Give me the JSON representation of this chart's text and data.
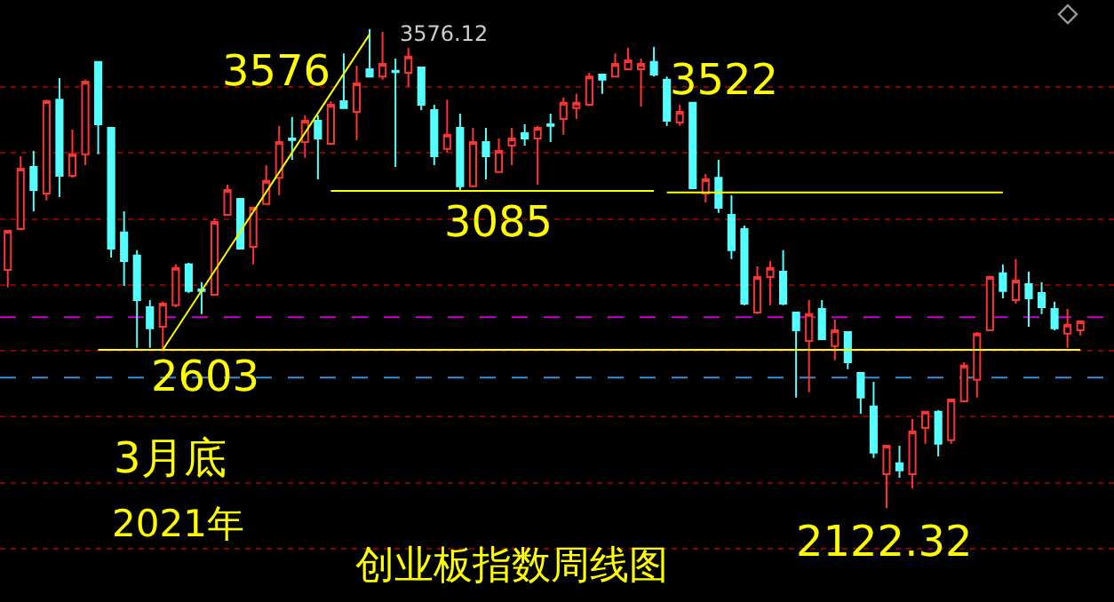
{
  "chart_data": {
    "type": "candlestick",
    "title": "创业板指数周线图",
    "categories": [
      null,
      null,
      null,
      null,
      null,
      null,
      null,
      null,
      null,
      null,
      null,
      null,
      null,
      null,
      null,
      null,
      null,
      null,
      null,
      null,
      null,
      null,
      null,
      null,
      null,
      null,
      null,
      null,
      null,
      null,
      null,
      null,
      null,
      null,
      null,
      null,
      null,
      null,
      null,
      null,
      null,
      null,
      null,
      null,
      null,
      null,
      null,
      null,
      null,
      null,
      null,
      null,
      null,
      null,
      null,
      null,
      null,
      null,
      null,
      null,
      null,
      null,
      null,
      null,
      null,
      null,
      null,
      null,
      null,
      null,
      null,
      null,
      null,
      null,
      null,
      null,
      null,
      null,
      null,
      null,
      null,
      null,
      null,
      null
    ],
    "ohlc": [
      [
        2845,
        2964,
        2792,
        2964
      ],
      [
        2969,
        3190,
        2969,
        3152
      ],
      [
        3158,
        3206,
        3023,
        3088
      ],
      [
        3077,
        3362,
        3056,
        3357
      ],
      [
        3362,
        3427,
        3066,
        3131
      ],
      [
        3131,
        3271,
        3125,
        3196
      ],
      [
        3196,
        3422,
        3163,
        3416
      ],
      [
        3476,
        3476,
        3196,
        3287
      ],
      [
        3276,
        3276,
        2883,
        2910
      ],
      [
        2959,
        3023,
        2797,
        2872
      ],
      [
        2889,
        2905,
        2609,
        2754
      ],
      [
        2732,
        2754,
        2609,
        2668
      ],
      [
        2673,
        2749,
        2603,
        2743
      ],
      [
        2738,
        2862,
        2732,
        2851
      ],
      [
        2862,
        2867,
        2775,
        2781
      ],
      [
        2786,
        2808,
        2711,
        2781
      ],
      [
        2770,
        3002,
        2770,
        2991
      ],
      [
        3012,
        3104,
        3012,
        3088
      ],
      [
        3061,
        3061,
        2910,
        2910
      ],
      [
        2915,
        3034,
        2862,
        3034
      ],
      [
        3045,
        3163,
        3045,
        3115
      ],
      [
        3125,
        3282,
        3072,
        3233
      ],
      [
        3244,
        3309,
        3179,
        3239
      ],
      [
        3233,
        3314,
        3185,
        3298
      ],
      [
        3298,
        3314,
        3120,
        3244
      ],
      [
        3228,
        3357,
        3228,
        3346
      ],
      [
        3357,
        3502,
        3336,
        3336
      ],
      [
        3325,
        3465,
        3239,
        3411
      ],
      [
        3454,
        3576.12,
        3432,
        3432
      ],
      [
        3432,
        3567,
        3422,
        3470
      ],
      [
        3449,
        3486,
        3158,
        3445
      ],
      [
        3443,
        3519,
        3400,
        3492
      ],
      [
        3459,
        3459,
        3330,
        3346
      ],
      [
        3330,
        3346,
        3163,
        3190
      ],
      [
        3212,
        3362,
        3201,
        3255
      ],
      [
        3276,
        3319,
        3088,
        3099
      ],
      [
        3099,
        3276,
        3099,
        3233
      ],
      [
        3233,
        3276,
        3120,
        3190
      ],
      [
        3142,
        3244,
        3142,
        3206
      ],
      [
        3222,
        3276,
        3163,
        3244
      ],
      [
        3260,
        3287,
        3222,
        3244
      ],
      [
        3244,
        3282,
        3104,
        3276
      ],
      [
        3287,
        3319,
        3233,
        3282
      ],
      [
        3303,
        3368,
        3255,
        3352
      ],
      [
        3336,
        3379,
        3303,
        3352
      ],
      [
        3346,
        3443,
        3346,
        3432
      ],
      [
        3438,
        3438,
        3379,
        3422
      ],
      [
        3432,
        3502,
        3432,
        3470
      ],
      [
        3454,
        3519,
        3454,
        3481
      ],
      [
        3454,
        3486,
        3341,
        3470
      ],
      [
        3476,
        3522,
        3432,
        3438
      ],
      [
        3422,
        3432,
        3282,
        3298
      ],
      [
        3292,
        3346,
        3282,
        3325
      ],
      [
        3352,
        3352,
        3093,
        3093
      ],
      [
        3077,
        3136,
        3050,
        3120
      ],
      [
        3125,
        3179,
        3018,
        3034
      ],
      [
        3012,
        3072,
        2878,
        2905
      ],
      [
        2969,
        2980,
        2738,
        2743
      ],
      [
        2716,
        2856,
        2711,
        2824
      ],
      [
        2824,
        2872,
        2738,
        2851
      ],
      [
        2840,
        2905,
        2738,
        2743
      ],
      [
        2716,
        2716,
        2458,
        2662
      ],
      [
        2630,
        2754,
        2474,
        2711
      ],
      [
        2727,
        2754,
        2635,
        2635
      ],
      [
        2614,
        2695,
        2571,
        2662
      ],
      [
        2657,
        2657,
        2544,
        2565
      ],
      [
        2533,
        2533,
        2409,
        2458
      ],
      [
        2431,
        2506,
        2275,
        2291
      ],
      [
        2226,
        2312,
        2122.32,
        2312
      ],
      [
        2259,
        2312,
        2215,
        2237
      ],
      [
        2226,
        2393,
        2183,
        2355
      ],
      [
        2366,
        2415,
        2318,
        2415
      ],
      [
        2415,
        2420,
        2280,
        2318
      ],
      [
        2329,
        2452,
        2318,
        2452
      ],
      [
        2447,
        2565,
        2447,
        2555
      ],
      [
        2512,
        2657,
        2458,
        2652
      ],
      [
        2662,
        2824,
        2662,
        2824
      ],
      [
        2835,
        2862,
        2759,
        2781
      ],
      [
        2754,
        2878,
        2743,
        2813
      ],
      [
        2802,
        2840,
        2673,
        2759
      ],
      [
        2775,
        2808,
        2711,
        2732
      ],
      [
        2727,
        2749,
        2662,
        2668
      ],
      [
        2652,
        2727,
        2609,
        2679
      ],
      [
        2662,
        2689,
        2646,
        2689
      ]
    ],
    "colors": [
      "#ff3232",
      "#ff3232",
      "#54ffff",
      "#ff3232",
      "#54ffff",
      "#ff3232",
      "#ff3232",
      "#54ffff",
      "#54ffff",
      "#54ffff",
      "#54ffff",
      "#54ffff",
      "#ff3232",
      "#ff3232",
      "#54ffff",
      "#54ffff",
      "#ff3232",
      "#ff3232",
      "#54ffff",
      "#ff3232",
      "#ff3232",
      "#ff3232",
      "#54ffff",
      "#ff3232",
      "#54ffff",
      "#ff3232",
      "#54ffff",
      "#ff3232",
      "#54ffff",
      "#ff3232",
      "#54ffff",
      "#ff3232",
      "#54ffff",
      "#54ffff",
      "#ff3232",
      "#54ffff",
      "#ff3232",
      "#54ffff",
      "#ff3232",
      "#ff3232",
      "#54ffff",
      "#ff3232",
      "#54ffff",
      "#ff3232",
      "#ff3232",
      "#ff3232",
      "#54ffff",
      "#ff3232",
      "#ff3232",
      "#ff3232",
      "#54ffff",
      "#54ffff",
      "#ff3232",
      "#54ffff",
      "#ff3232",
      "#54ffff",
      "#54ffff",
      "#54ffff",
      "#ff3232",
      "#ff3232",
      "#54ffff",
      "#54ffff",
      "#ff3232",
      "#54ffff",
      "#ff3232",
      "#54ffff",
      "#54ffff",
      "#54ffff",
      "#ff3232",
      "#54ffff",
      "#ff3232",
      "#ff3232",
      "#54ffff",
      "#ff3232",
      "#ff3232",
      "#ff3232",
      "#ff3232",
      "#54ffff",
      "#ff3232",
      "#54ffff",
      "#54ffff",
      "#54ffff",
      "#ff3232",
      "#ff3232"
    ],
    "series": [
      {
        "type": "line",
        "color": "#ffff00",
        "values": [
          null,
          null,
          null,
          null,
          null,
          null,
          null,
          2603,
          null,
          null,
          null,
          null,
          null,
          null,
          null,
          null,
          null,
          null,
          null,
          null,
          null,
          null,
          null,
          null,
          null,
          null,
          null,
          null,
          null,
          null,
          null,
          null,
          null,
          null,
          null,
          null,
          null,
          null,
          null,
          null,
          null,
          null,
          null,
          null,
          null,
          null,
          null,
          null,
          null,
          null,
          null,
          null,
          null,
          null,
          null,
          null,
          null,
          null,
          null,
          null,
          null,
          null,
          null,
          null,
          null,
          null,
          null,
          null,
          null,
          null,
          null,
          null,
          null,
          null,
          null,
          null,
          null,
          null,
          null,
          null,
          null,
          null,
          null,
          2603
        ]
      },
      {
        "type": "line",
        "color": "#ffff00",
        "values": [
          null,
          null,
          null,
          null,
          null,
          null,
          null,
          null,
          null,
          null,
          null,
          null,
          null,
          null,
          null,
          null,
          null,
          null,
          null,
          null,
          null,
          null,
          null,
          null,
          null,
          3085,
          null,
          null,
          null,
          null,
          null,
          null,
          null,
          null,
          null,
          null,
          null,
          null,
          null,
          null,
          null,
          null,
          null,
          null,
          null,
          null,
          null,
          null,
          null,
          null,
          3085,
          null,
          null,
          null,
          null,
          null,
          null,
          null,
          null,
          null,
          null,
          null,
          null,
          null,
          null,
          null,
          null,
          null,
          null,
          null,
          null,
          null,
          null,
          null,
          null,
          null,
          null,
          null,
          null,
          null,
          null,
          null,
          null,
          null
        ]
      },
      {
        "type": "line",
        "color": "#ffff00",
        "values": [
          null,
          null,
          null,
          null,
          null,
          null,
          null,
          null,
          null,
          null,
          null,
          null,
          null,
          null,
          null,
          null,
          null,
          null,
          null,
          null,
          null,
          null,
          null,
          null,
          null,
          null,
          null,
          null,
          null,
          null,
          null,
          null,
          null,
          null,
          null,
          null,
          null,
          null,
          null,
          null,
          null,
          null,
          null,
          null,
          null,
          null,
          null,
          null,
          null,
          null,
          null,
          3080,
          null,
          null,
          null,
          null,
          null,
          null,
          null,
          null,
          null,
          null,
          null,
          null,
          null,
          null,
          null,
          null,
          null,
          null,
          null,
          null,
          null,
          null,
          null,
          null,
          null,
          3080,
          null,
          null,
          null,
          null,
          null,
          null
        ]
      },
      {
        "type": "line",
        "color": "#ffff00",
        "values": [
          null,
          null,
          null,
          null,
          null,
          null,
          null,
          null,
          null,
          null,
          null,
          null,
          2603,
          null,
          null,
          null,
          null,
          null,
          null,
          null,
          null,
          null,
          null,
          null,
          null,
          null,
          null,
          null,
          3560,
          null,
          null,
          null,
          null,
          null,
          null,
          null,
          null,
          null,
          null,
          null,
          null,
          null,
          null,
          null,
          null,
          null,
          null,
          null,
          null,
          null,
          null,
          null,
          null,
          null,
          null,
          null,
          null,
          null,
          null,
          null,
          null,
          null,
          null,
          null,
          null,
          null,
          null,
          null,
          null,
          null,
          null,
          null,
          null,
          null,
          null,
          null,
          null,
          null,
          null,
          null,
          null,
          null,
          null,
          null
        ]
      }
    ],
    "ref_lines": [
      {
        "axis": "y",
        "value": 2702,
        "color": "#d000d0",
        "line_style": "dashed"
      },
      {
        "axis": "y",
        "value": 2519,
        "color": "#3a8fd8",
        "line_style": "dashed"
      }
    ],
    "annotations": [
      "3576",
      "3522",
      "3085",
      "2603",
      "2122.32",
      "3576.12",
      "3月底",
      "2021年"
    ],
    "ylim": [
      1838,
      3664
    ],
    "yticks": [
      {
        "value": 2000,
        "label": null
      },
      {
        "value": 2200,
        "label": null
      },
      {
        "value": 2400,
        "label": null
      },
      {
        "value": 2600,
        "label": null
      },
      {
        "value": 2800,
        "label": null
      },
      {
        "value": 3000,
        "label": null
      },
      {
        "value": 3200,
        "label": null
      },
      {
        "value": 3400,
        "label": null
      }
    ],
    "grid": "y"
  }
}
